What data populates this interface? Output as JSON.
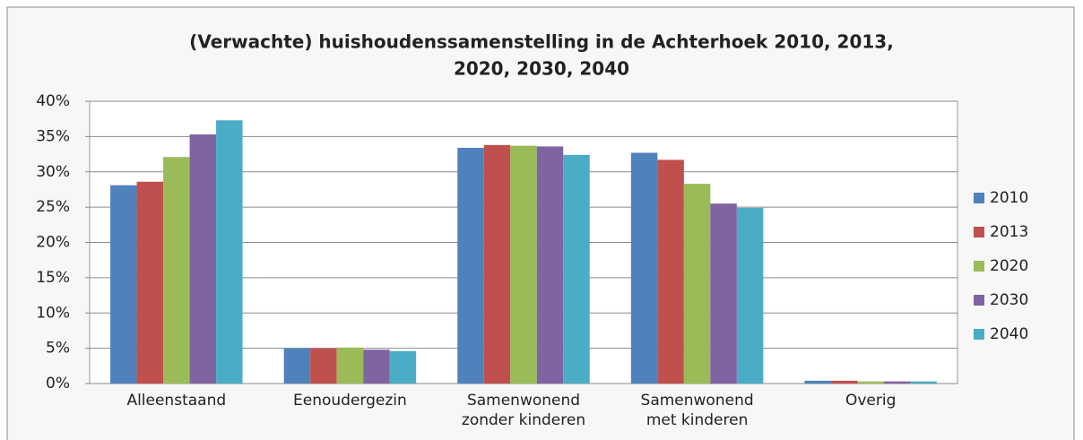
{
  "chart_data": {
    "type": "bar",
    "title": [
      "(Verwachte) huishoudenssamenstelling in de Achterhoek 2010, 2013,",
      "2020, 2030, 2040"
    ],
    "categories": [
      "Alleenstaand",
      "Eenoudergezin",
      "Samenwonend zonder kinderen",
      "Samenwonend met kinderen",
      "Overig"
    ],
    "series": [
      {
        "name": "2010",
        "color": "#4f81bd",
        "values": [
          28.1,
          5.0,
          33.4,
          32.7,
          0.4
        ]
      },
      {
        "name": "2013",
        "color": "#c0504d",
        "values": [
          28.6,
          5.0,
          33.8,
          31.7,
          0.4
        ]
      },
      {
        "name": "2020",
        "color": "#9bbb59",
        "values": [
          32.1,
          5.1,
          33.7,
          28.3,
          0.3
        ]
      },
      {
        "name": "2030",
        "color": "#8064a2",
        "values": [
          35.3,
          4.8,
          33.6,
          25.5,
          0.3
        ]
      },
      {
        "name": "2040",
        "color": "#4bacc6",
        "values": [
          37.3,
          4.6,
          32.4,
          24.9,
          0.3
        ]
      }
    ],
    "ylim": [
      0,
      40
    ],
    "yticks": [
      {
        "value": 0,
        "label": "0%"
      },
      {
        "value": 5,
        "label": "5%"
      },
      {
        "value": 10,
        "label": "10%"
      },
      {
        "value": 15,
        "label": "15%"
      },
      {
        "value": 20,
        "label": "20%"
      },
      {
        "value": 25,
        "label": "25%"
      },
      {
        "value": 30,
        "label": "30%"
      },
      {
        "value": 35,
        "label": "35%"
      },
      {
        "value": 40,
        "label": "40%"
      }
    ],
    "grid": true,
    "legend": "right"
  }
}
